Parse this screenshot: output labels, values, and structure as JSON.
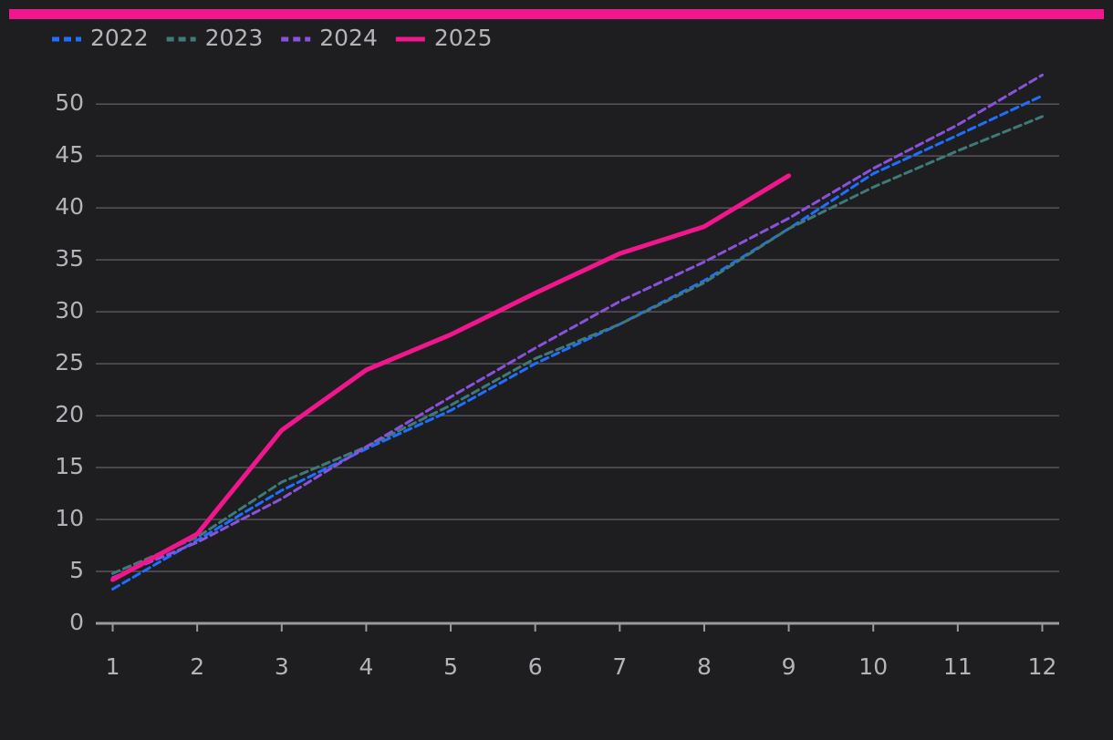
{
  "chart_data": {
    "type": "line",
    "x": [
      1,
      2,
      3,
      4,
      5,
      6,
      7,
      8,
      9,
      10,
      11,
      12
    ],
    "series": [
      {
        "name": "2022",
        "color": "#1f6fff",
        "dashed": true,
        "values": [
          3.3,
          8.0,
          12.8,
          16.8,
          20.5,
          25.0,
          28.8,
          33.0,
          38.0,
          43.3,
          47.0,
          50.8
        ]
      },
      {
        "name": "2023",
        "color": "#3f7a78",
        "dashed": true,
        "values": [
          4.8,
          8.3,
          13.6,
          17.0,
          21.0,
          25.5,
          28.8,
          32.8,
          38.0,
          42.0,
          45.5,
          48.8
        ]
      },
      {
        "name": "2024",
        "color": "#8a52dc",
        "dashed": true,
        "values": [
          4.4,
          7.8,
          12.0,
          17.0,
          21.8,
          26.5,
          31.0,
          34.8,
          39.0,
          43.8,
          48.0,
          52.8
        ]
      },
      {
        "name": "2025",
        "color": "#f0168c",
        "dashed": false,
        "values": [
          4.2,
          8.6,
          18.6,
          24.4,
          27.8,
          31.8,
          35.6,
          38.2,
          43.1,
          null,
          null,
          null
        ]
      }
    ],
    "xlim": [
      0.8,
      12.2
    ],
    "xticks": [
      1,
      2,
      3,
      4,
      5,
      6,
      7,
      8,
      9,
      10,
      11,
      12
    ],
    "ylim": [
      0,
      53
    ],
    "yticks": [
      0,
      5,
      10,
      15,
      20,
      25,
      30,
      35,
      40,
      45,
      50
    ],
    "grid": true,
    "legend": "top-left"
  }
}
